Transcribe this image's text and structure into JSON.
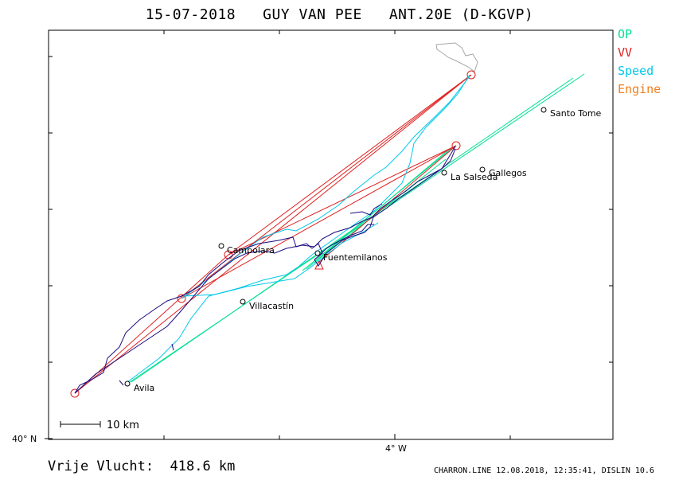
{
  "title": "15-07-2018   GUY VAN PEE   ANT.20E (D-KGVP)",
  "legend": [
    {
      "label": "OP",
      "color": "#00e090"
    },
    {
      "label": "VV",
      "color": "#e02020"
    },
    {
      "label": "Speed",
      "color": "#00c8e8"
    },
    {
      "label": "Engine",
      "color": "#f08020"
    }
  ],
  "axes": {
    "lat_label": "40° N",
    "lon_label": "4° W"
  },
  "scale": {
    "label": "10 km"
  },
  "places": [
    {
      "name": "Santo Tome"
    },
    {
      "name": "Gallegos"
    },
    {
      "name": "La Salseda"
    },
    {
      "name": "Campolara"
    },
    {
      "name": "Fuentemilanos"
    },
    {
      "name": "Villacastín"
    },
    {
      "name": "Avila"
    }
  ],
  "footer": {
    "distance": "Vrije Vlucht:  418.6 km",
    "credit": "CHARRON.LINE 12.08.2018, 12:35:41, DISLIN 10.6"
  },
  "colors": {
    "track": "#1a0a80",
    "speed": "#00c8e8",
    "op": "#00e090",
    "vv": "#e02020"
  }
}
